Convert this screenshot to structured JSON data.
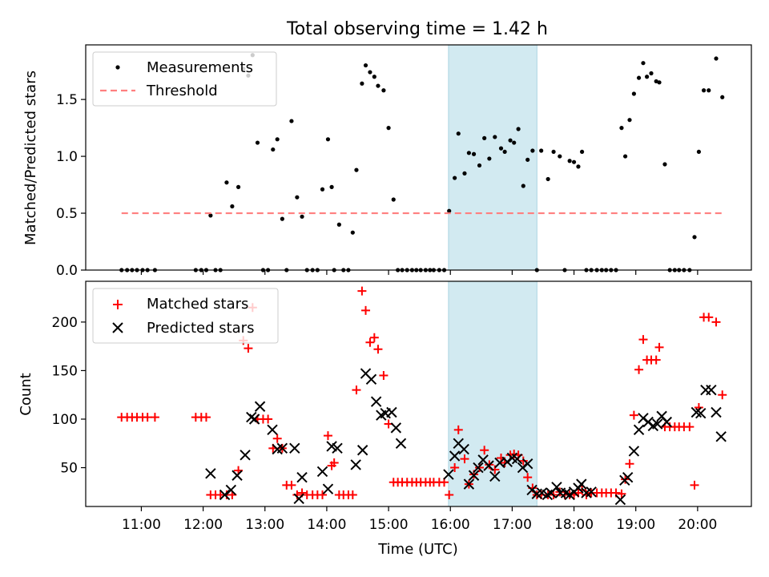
{
  "figure": {
    "title": "Total observing time = 1.42 h",
    "xlabel": "Time (UTC)",
    "x_ticks": [
      "11:00",
      "12:00",
      "13:00",
      "14:00",
      "15:00",
      "16:00",
      "17:00",
      "18:00",
      "19:00",
      "20:00"
    ],
    "x_tick_hours": [
      11,
      12,
      13,
      14,
      15,
      16,
      17,
      18,
      19,
      20
    ],
    "xlim_hours": [
      10.1,
      20.87
    ],
    "highlight_span_hours": [
      15.97,
      17.4
    ],
    "highlight_color": "#add8e6"
  },
  "chart_data": [
    {
      "type": "scatter",
      "title": "Total observing time = 1.42 h",
      "ylabel": "Matched/Predicted stars",
      "ylim": [
        0,
        1.98
      ],
      "y_ticks": [
        0.0,
        0.5,
        1.0,
        1.5
      ],
      "y_tick_labels": [
        "0.0",
        "0.5",
        "1.0",
        "1.5"
      ],
      "grid": false,
      "legend": "top-left",
      "series": [
        {
          "name": "Measurements",
          "marker": "dot",
          "color": "#000000",
          "x": [
            10.68,
            10.77,
            10.85,
            10.93,
            11.02,
            11.1,
            11.22,
            11.88,
            11.97,
            12.05,
            12.12,
            12.2,
            12.28,
            12.38,
            12.47,
            12.57,
            12.65,
            12.73,
            12.8,
            12.88,
            12.97,
            13.05,
            13.13,
            13.2,
            13.28,
            13.35,
            13.43,
            13.52,
            13.6,
            13.68,
            13.77,
            13.85,
            13.93,
            14.02,
            14.08,
            14.12,
            14.2,
            14.27,
            14.35,
            14.42,
            14.48,
            14.57,
            14.63,
            14.7,
            14.77,
            14.83,
            14.92,
            15.0,
            15.08,
            15.15,
            15.22,
            15.3,
            15.38,
            15.45,
            15.52,
            15.6,
            15.67,
            15.73,
            15.82,
            15.9,
            15.98,
            16.07,
            16.13,
            16.23,
            16.3,
            16.38,
            16.47,
            16.55,
            16.63,
            16.72,
            16.82,
            16.88,
            16.97,
            17.03,
            17.1,
            17.18,
            17.25,
            17.33,
            17.4,
            17.47,
            17.58,
            17.67,
            17.77,
            17.85,
            17.93,
            18.0,
            18.07,
            18.13,
            18.2,
            18.28,
            18.37,
            18.45,
            18.52,
            18.6,
            18.68,
            18.77,
            18.83,
            18.9,
            18.97,
            19.05,
            19.12,
            19.18,
            19.25,
            19.33,
            19.38,
            19.47,
            19.55,
            19.63,
            19.7,
            19.78,
            19.87,
            19.95,
            20.02,
            20.1,
            20.18,
            20.3,
            20.4
          ],
          "y": [
            0.0,
            0.0,
            0.0,
            0.0,
            0.0,
            0.0,
            0.0,
            0.0,
            0.0,
            0.0,
            0.48,
            0.0,
            0.0,
            0.77,
            0.56,
            0.73,
            1.77,
            1.71,
            1.89,
            1.12,
            0.0,
            0.0,
            1.06,
            1.15,
            0.45,
            0.0,
            1.31,
            0.64,
            0.47,
            0.0,
            0.0,
            0.0,
            0.71,
            1.15,
            0.73,
            0.0,
            0.4,
            0.0,
            0.0,
            0.33,
            0.88,
            1.64,
            1.8,
            1.74,
            1.7,
            1.62,
            1.58,
            1.25,
            0.62,
            0.0,
            0.0,
            0.0,
            0.0,
            0.0,
            0.0,
            0.0,
            0.0,
            0.0,
            0.0,
            0.0,
            0.52,
            0.81,
            1.2,
            0.85,
            1.03,
            1.02,
            0.92,
            1.16,
            0.98,
            1.17,
            1.07,
            1.04,
            1.14,
            1.12,
            1.24,
            0.74,
            0.97,
            1.05,
            0.0,
            1.05,
            0.8,
            1.04,
            1.0,
            0.0,
            0.96,
            0.95,
            0.91,
            1.04,
            0.0,
            0.0,
            0.0,
            0.0,
            0.0,
            0.0,
            0.0,
            1.25,
            1.0,
            1.32,
            1.55,
            1.69,
            1.82,
            1.7,
            1.73,
            1.66,
            1.65,
            0.93,
            0.0,
            0.0,
            0.0,
            0.0,
            0.0,
            0.29,
            1.04,
            1.58,
            1.58,
            1.86,
            1.52
          ]
        },
        {
          "name": "Threshold",
          "marker": "dashed-line",
          "color": "#ff7f7f",
          "x": [
            10.68,
            20.4
          ],
          "y": [
            0.5,
            0.5
          ]
        }
      ]
    },
    {
      "type": "scatter",
      "ylabel": "Count",
      "ylim": [
        10,
        242
      ],
      "y_ticks": [
        50,
        100,
        150,
        200
      ],
      "y_tick_labels": [
        "50",
        "100",
        "150",
        "200"
      ],
      "grid": false,
      "legend": "top-left",
      "series": [
        {
          "name": "Matched stars",
          "marker": "plus",
          "color": "#ff0000",
          "x": [
            10.68,
            10.77,
            10.85,
            10.93,
            11.02,
            11.1,
            11.22,
            11.88,
            11.97,
            12.05,
            12.12,
            12.2,
            12.28,
            12.38,
            12.47,
            12.57,
            12.65,
            12.73,
            12.8,
            12.88,
            12.97,
            13.05,
            13.13,
            13.2,
            13.28,
            13.35,
            13.43,
            13.52,
            13.6,
            13.68,
            13.77,
            13.85,
            13.93,
            14.02,
            14.08,
            14.12,
            14.2,
            14.27,
            14.35,
            14.42,
            14.48,
            14.57,
            14.63,
            14.7,
            14.77,
            14.83,
            14.92,
            15.0,
            15.08,
            15.15,
            15.22,
            15.3,
            15.38,
            15.45,
            15.52,
            15.6,
            15.67,
            15.73,
            15.82,
            15.9,
            15.98,
            16.07,
            16.13,
            16.23,
            16.3,
            16.38,
            16.47,
            16.55,
            16.63,
            16.72,
            16.82,
            16.88,
            16.97,
            17.03,
            17.1,
            17.18,
            17.25,
            17.33,
            17.4,
            17.47,
            17.58,
            17.67,
            17.77,
            17.85,
            17.93,
            18.0,
            18.07,
            18.13,
            18.2,
            18.28,
            18.37,
            18.45,
            18.52,
            18.6,
            18.68,
            18.77,
            18.83,
            18.9,
            18.97,
            19.05,
            19.12,
            19.18,
            19.25,
            19.33,
            19.38,
            19.47,
            19.55,
            19.63,
            19.7,
            19.78,
            19.87,
            19.95,
            20.02,
            20.1,
            20.18,
            20.3,
            20.4
          ],
          "y": [
            102,
            102,
            102,
            102,
            102,
            102,
            102,
            102,
            102,
            102,
            22,
            22,
            22,
            22,
            22,
            47,
            181,
            173,
            215,
            100,
            100,
            100,
            70,
            80,
            70,
            32,
            32,
            22,
            24,
            22,
            22,
            22,
            22,
            83,
            52,
            55,
            22,
            22,
            22,
            22,
            130,
            232,
            212,
            179,
            184,
            172,
            145,
            95,
            35,
            35,
            35,
            35,
            35,
            35,
            35,
            35,
            35,
            35,
            35,
            35,
            22,
            50,
            89,
            59,
            33,
            43,
            50,
            68,
            53,
            48,
            60,
            55,
            63,
            64,
            63,
            57,
            40,
            29,
            22,
            22,
            22,
            22,
            25,
            22,
            22,
            22,
            24,
            27,
            22,
            24,
            24,
            24,
            24,
            24,
            24,
            23,
            38,
            54,
            104,
            151,
            182,
            161,
            161,
            161,
            174,
            92,
            92,
            92,
            92,
            92,
            92,
            32,
            112,
            205,
            205,
            200,
            125
          ]
        },
        {
          "name": "Predicted stars",
          "marker": "x",
          "color": "#000000",
          "x": [
            12.12,
            12.35,
            12.45,
            12.55,
            12.68,
            12.78,
            12.83,
            12.92,
            13.12,
            13.2,
            13.28,
            13.48,
            13.55,
            13.6,
            13.93,
            14.02,
            14.08,
            14.17,
            14.47,
            14.58,
            14.63,
            14.72,
            14.8,
            14.88,
            14.95,
            15.05,
            15.12,
            15.2,
            15.97,
            16.07,
            16.13,
            16.22,
            16.3,
            16.38,
            16.45,
            16.53,
            16.62,
            16.72,
            16.8,
            16.92,
            17.0,
            17.08,
            17.17,
            17.25,
            17.32,
            17.4,
            17.48,
            17.57,
            17.63,
            17.72,
            17.78,
            17.87,
            17.93,
            18.0,
            18.07,
            18.12,
            18.2,
            18.28,
            18.75,
            18.82,
            18.87,
            18.97,
            19.05,
            19.12,
            19.2,
            19.28,
            19.35,
            19.42,
            19.5,
            19.98,
            20.05,
            20.13,
            20.22,
            20.3,
            20.38
          ],
          "y": [
            44,
            22,
            27,
            42,
            63,
            102,
            100,
            113,
            89,
            69,
            70,
            70,
            18,
            40,
            46,
            28,
            72,
            70,
            53,
            68,
            147,
            141,
            118,
            104,
            106,
            107,
            91,
            75,
            43,
            62,
            75,
            69,
            33,
            42,
            50,
            58,
            52,
            41,
            55,
            56,
            60,
            59,
            50,
            54,
            27,
            23,
            24,
            22,
            24,
            30,
            24,
            24,
            22,
            25,
            29,
            33,
            24,
            25,
            17,
            37,
            40,
            67,
            89,
            101,
            97,
            93,
            95,
            103,
            97,
            107,
            106,
            130,
            130,
            107,
            82
          ]
        }
      ]
    }
  ]
}
